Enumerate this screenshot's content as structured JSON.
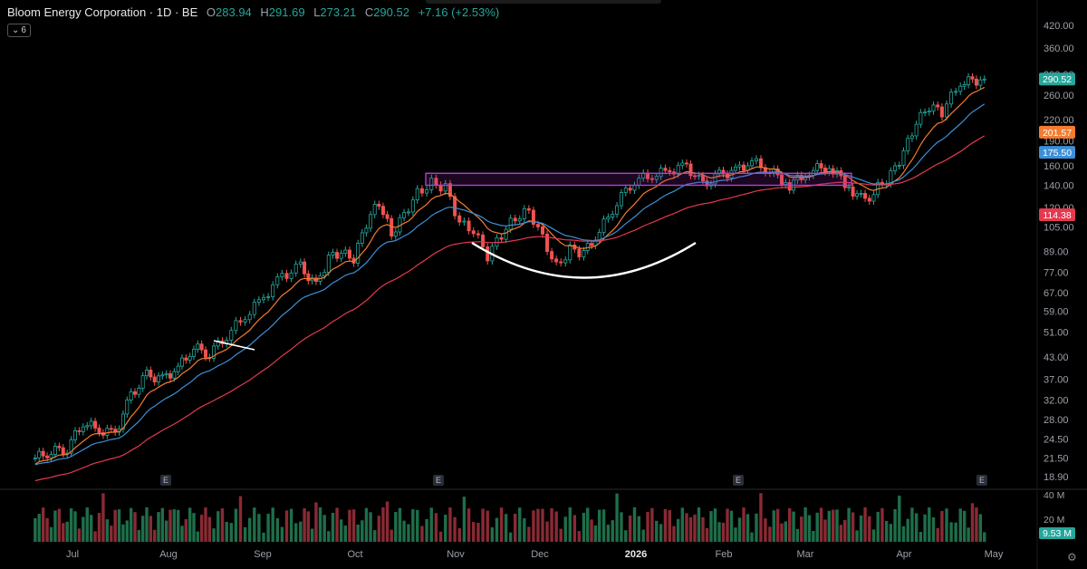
{
  "header": {
    "symbol": "Bloom Energy Corporation · 1D · BE",
    "open_label": "O",
    "open": "283.94",
    "high_label": "H",
    "high": "291.69",
    "low_label": "L",
    "low": "273.21",
    "close_label": "C",
    "close": "290.52",
    "change": "+7.16 (+2.53%)",
    "indicator_badge": "6"
  },
  "chart_data": {
    "type": "line",
    "title": "Bloom Energy Corporation · 1D · BE",
    "x_months": [
      "Jul",
      "Aug",
      "Sep",
      "Oct",
      "Nov",
      "Dec",
      "2026",
      "Feb",
      "Mar",
      "Apr",
      "May"
    ],
    "y_ticks": [
      "420.00",
      "360.00",
      "300.00",
      "260.00",
      "220.00",
      "190.00",
      "160.00",
      "140.00",
      "120.00",
      "105.00",
      "89.00",
      "77.00",
      "67.00",
      "59.00",
      "51.00",
      "43.00",
      "37.00",
      "32.00",
      "28.00",
      "24.50",
      "21.50",
      "18.90"
    ],
    "y_scale": "log",
    "ylim": [
      18.0,
      420.0
    ],
    "price_labels": [
      {
        "value": 290.52,
        "text": "290.52",
        "color": "#26a69a"
      },
      {
        "value": 201.57,
        "text": "201.57",
        "color": "#f57c2e"
      },
      {
        "value": 175.5,
        "text": "175.50",
        "color": "#3d8fd6"
      },
      {
        "value": 114.38,
        "text": "114.38",
        "color": "#e53950"
      }
    ],
    "earnings_markers": [
      {
        "month": "Jul",
        "label": "E"
      },
      {
        "month": "Oct",
        "label": "E"
      },
      {
        "month": "Feb",
        "label": "E"
      },
      {
        "month": "Apr",
        "label": "E"
      }
    ],
    "volume_axis": [
      "40 M",
      "20 M"
    ],
    "volume_last": "9.53 M",
    "price_series": [
      {
        "month": "Jul",
        "close": 21.5
      },
      {
        "month": "Jul",
        "close": 22.5
      },
      {
        "month": "Jul",
        "close": 23.0
      },
      {
        "month": "Jul",
        "close": 27.5
      },
      {
        "month": "Jul",
        "close": 26.0
      },
      {
        "month": "Jul",
        "close": 25.5
      },
      {
        "month": "Aug",
        "close": 33.0
      },
      {
        "month": "Aug",
        "close": 38.0
      },
      {
        "month": "Aug",
        "close": 37.0
      },
      {
        "month": "Aug",
        "close": 40.0
      },
      {
        "month": "Aug",
        "close": 46.0
      },
      {
        "month": "Aug",
        "close": 44.0
      },
      {
        "month": "Sep",
        "close": 50.0
      },
      {
        "month": "Sep",
        "close": 57.0
      },
      {
        "month": "Sep",
        "close": 65.0
      },
      {
        "month": "Sep",
        "close": 75.0
      },
      {
        "month": "Sep",
        "close": 80.0
      },
      {
        "month": "Oct",
        "close": 70.0
      },
      {
        "month": "Oct",
        "close": 85.0
      },
      {
        "month": "Oct",
        "close": 88.0
      },
      {
        "month": "Oct",
        "close": 84.0
      },
      {
        "month": "Oct",
        "close": 108.0
      },
      {
        "month": "Oct",
        "close": 125.0
      },
      {
        "month": "Oct",
        "close": 100.0
      },
      {
        "month": "Oct",
        "close": 115.0
      },
      {
        "month": "Nov",
        "close": 133.0
      },
      {
        "month": "Nov",
        "close": 142.0
      },
      {
        "month": "Nov",
        "close": 138.0
      },
      {
        "month": "Nov",
        "close": 108.0
      },
      {
        "month": "Nov",
        "close": 102.0
      },
      {
        "month": "Nov",
        "close": 86.0
      },
      {
        "month": "Dec",
        "close": 100.0
      },
      {
        "month": "Dec",
        "close": 112.0
      },
      {
        "month": "Dec",
        "close": 118.0
      },
      {
        "month": "Dec",
        "close": 98.0
      },
      {
        "month": "Dec",
        "close": 80.0
      },
      {
        "month": "Dec",
        "close": 90.0
      },
      {
        "month": "Dec",
        "close": 88.0
      },
      {
        "month": "2026",
        "close": 102.0
      },
      {
        "month": "2026",
        "close": 125.0
      },
      {
        "month": "2026",
        "close": 145.0
      },
      {
        "month": "2026",
        "close": 150.0
      },
      {
        "month": "2026",
        "close": 155.0
      },
      {
        "month": "Feb",
        "close": 160.0
      },
      {
        "month": "Feb",
        "close": 140.0
      },
      {
        "month": "Feb",
        "close": 150.0
      },
      {
        "month": "Feb",
        "close": 155.0
      },
      {
        "month": "Feb",
        "close": 165.0
      },
      {
        "month": "Mar",
        "close": 155.0
      },
      {
        "month": "Mar",
        "close": 140.0
      },
      {
        "month": "Mar",
        "close": 155.0
      },
      {
        "month": "Mar",
        "close": 160.0
      },
      {
        "month": "Mar",
        "close": 138.0
      },
      {
        "month": "Apr",
        "close": 125.0
      },
      {
        "month": "Apr",
        "close": 138.0
      },
      {
        "month": "Apr",
        "close": 150.0
      },
      {
        "month": "Apr",
        "close": 175.0
      },
      {
        "month": "Apr",
        "close": 215.0
      },
      {
        "month": "Apr",
        "close": 240.0
      },
      {
        "month": "Apr",
        "close": 232.0
      },
      {
        "month": "May",
        "close": 283.94
      },
      {
        "month": "May",
        "close": 290.52
      }
    ],
    "moving_averages": [
      {
        "color": "#f57c2e",
        "last": 201.57
      },
      {
        "color": "#3d8fd6",
        "last": 175.5
      },
      {
        "color": "#e53950",
        "last": 114.38
      }
    ],
    "annotations": [
      {
        "type": "resistance-zone",
        "from_month": "Nov",
        "to_month": "Mar",
        "low": 140.0,
        "high": 152.0,
        "color": "#9c27b0"
      },
      {
        "type": "arc",
        "shape": "cup",
        "color": "#ffffff"
      }
    ],
    "grid": false,
    "legend": "none"
  }
}
